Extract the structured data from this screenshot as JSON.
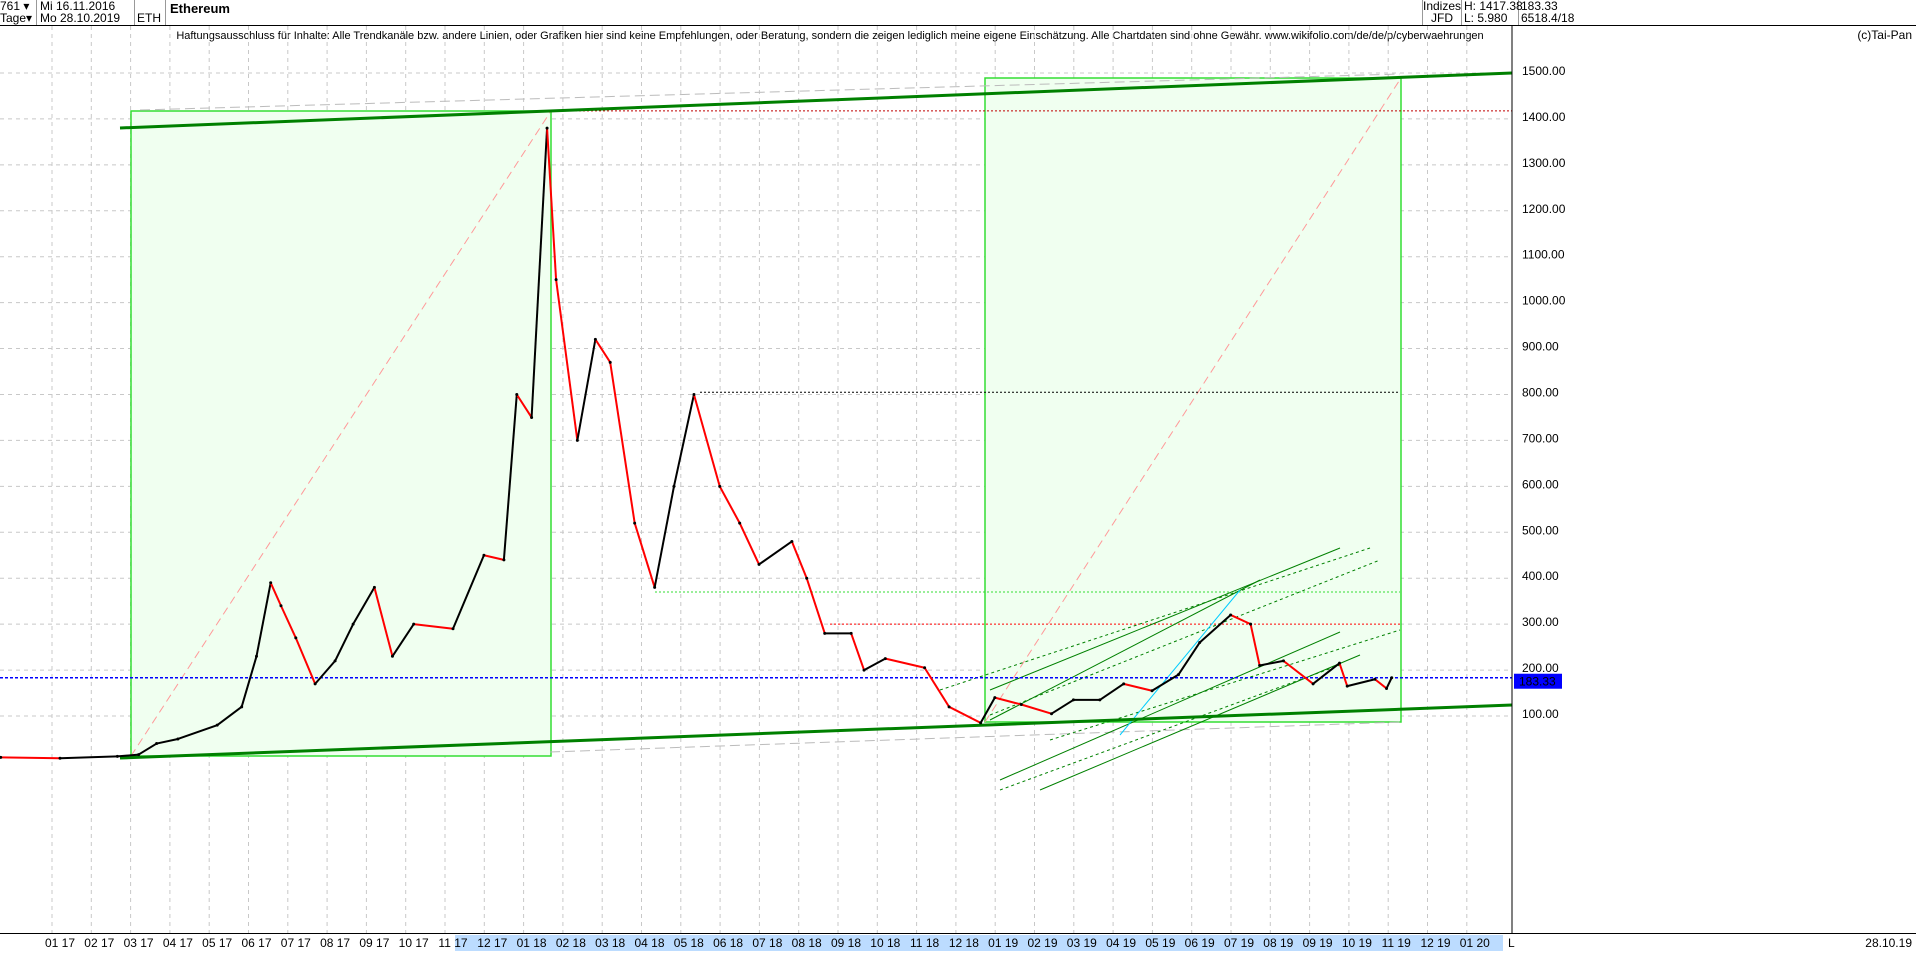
{
  "header": {
    "bars": "761",
    "period": "Tage",
    "date_from": "Mi 16.11.2016",
    "date_to": "Mo 28.10.2019",
    "symbol": "ETH",
    "title": "Ethereum",
    "market": "Indizes",
    "exchange": "JFD",
    "high": "H: 1417.38",
    "low": "L: 5.980",
    "last": "183.33",
    "extra": "6518.4/18"
  },
  "disclaimer": "Haftungsausschluss für Inhalte: Alle Trendkanäle bzw. andere Linien, oder Grafiken hier sind keine Empfehlungen, oder Beratung, sondern die zeigen lediglich meine eigene Einschätzung. Alle Chartdaten sind ohne Gewähr.  www.wikifolio.com/de/de/p/cyberwaehrungen",
  "copyright": "(c)Tai-Pan",
  "footer": {
    "mode": "L",
    "last_date": "28.10.19"
  },
  "colors": {
    "up": "#000000",
    "down": "#ff0000",
    "trend": "#008000",
    "box": "#33dd33",
    "box_fill": "#f0fff0",
    "last_line": "#0000ff",
    "last_label_bg": "#0000ff"
  },
  "chart_data": {
    "type": "line",
    "title": "Ethereum",
    "ylim": [
      0,
      1550
    ],
    "y_ticks": [
      "100.00",
      "200.00",
      "300.00",
      "400.00",
      "500.00",
      "600.00",
      "700.00",
      "800.00",
      "900.00",
      "1000.00",
      "1100.00",
      "1200.00",
      "1300.00",
      "1400.00",
      "1500.00"
    ],
    "x_ticks": [
      "01 17",
      "02 17",
      "03 17",
      "04 17",
      "05 17",
      "06 17",
      "07 17",
      "08 17",
      "09 17",
      "10 17",
      "11 17",
      "12 17",
      "01 18",
      "02 18",
      "03 18",
      "04 18",
      "05 18",
      "06 18",
      "07 18",
      "08 18",
      "09 18",
      "10 18",
      "11 18",
      "12 18",
      "01 19",
      "02 19",
      "03 19",
      "04 19",
      "05 19",
      "06 19",
      "07 19",
      "08 19",
      "09 19",
      "10 19",
      "11 19",
      "12 19",
      "01 20"
    ],
    "last_value_label": "183.33",
    "grid": true,
    "points": [
      [
        "2016-11-16",
        10
      ],
      [
        "2017-01-01",
        8
      ],
      [
        "2017-02-15",
        12
      ],
      [
        "2017-03-01",
        16
      ],
      [
        "2017-03-15",
        40
      ],
      [
        "2017-04-01",
        50
      ],
      [
        "2017-05-01",
        80
      ],
      [
        "2017-05-20",
        120
      ],
      [
        "2017-06-01",
        230
      ],
      [
        "2017-06-12",
        390
      ],
      [
        "2017-06-20",
        340
      ],
      [
        "2017-07-01",
        270
      ],
      [
        "2017-07-16",
        170
      ],
      [
        "2017-08-01",
        220
      ],
      [
        "2017-08-15",
        300
      ],
      [
        "2017-09-01",
        380
      ],
      [
        "2017-09-15",
        230
      ],
      [
        "2017-10-01",
        300
      ],
      [
        "2017-11-01",
        290
      ],
      [
        "2017-11-25",
        450
      ],
      [
        "2017-12-10",
        440
      ],
      [
        "2017-12-20",
        800
      ],
      [
        "2018-01-01",
        750
      ],
      [
        "2018-01-13",
        1380
      ],
      [
        "2018-01-20",
        1050
      ],
      [
        "2018-02-06",
        700
      ],
      [
        "2018-02-20",
        920
      ],
      [
        "2018-03-01",
        870
      ],
      [
        "2018-03-20",
        520
      ],
      [
        "2018-04-05",
        380
      ],
      [
        "2018-04-20",
        600
      ],
      [
        "2018-05-05",
        800
      ],
      [
        "2018-05-25",
        600
      ],
      [
        "2018-06-10",
        520
      ],
      [
        "2018-06-25",
        430
      ],
      [
        "2018-07-20",
        480
      ],
      [
        "2018-08-01",
        400
      ],
      [
        "2018-08-15",
        280
      ],
      [
        "2018-09-05",
        280
      ],
      [
        "2018-09-15",
        200
      ],
      [
        "2018-10-01",
        225
      ],
      [
        "2018-11-01",
        205
      ],
      [
        "2018-11-20",
        120
      ],
      [
        "2018-12-14",
        85
      ],
      [
        "2018-12-25",
        140
      ],
      [
        "2019-01-15",
        125
      ],
      [
        "2019-02-08",
        105
      ],
      [
        "2019-02-25",
        135
      ],
      [
        "2019-03-15",
        135
      ],
      [
        "2019-04-03",
        170
      ],
      [
        "2019-04-25",
        155
      ],
      [
        "2019-05-15",
        190
      ],
      [
        "2019-06-01",
        260
      ],
      [
        "2019-06-25",
        320
      ],
      [
        "2019-07-10",
        300
      ],
      [
        "2019-07-17",
        210
      ],
      [
        "2019-08-05",
        220
      ],
      [
        "2019-08-28",
        170
      ],
      [
        "2019-09-18",
        215
      ],
      [
        "2019-09-24",
        165
      ],
      [
        "2019-10-15",
        180
      ],
      [
        "2019-10-24",
        160
      ],
      [
        "2019-10-28",
        183.33
      ]
    ],
    "horizontal_levels": [
      1417.38,
      805,
      370,
      300,
      183.33
    ]
  }
}
